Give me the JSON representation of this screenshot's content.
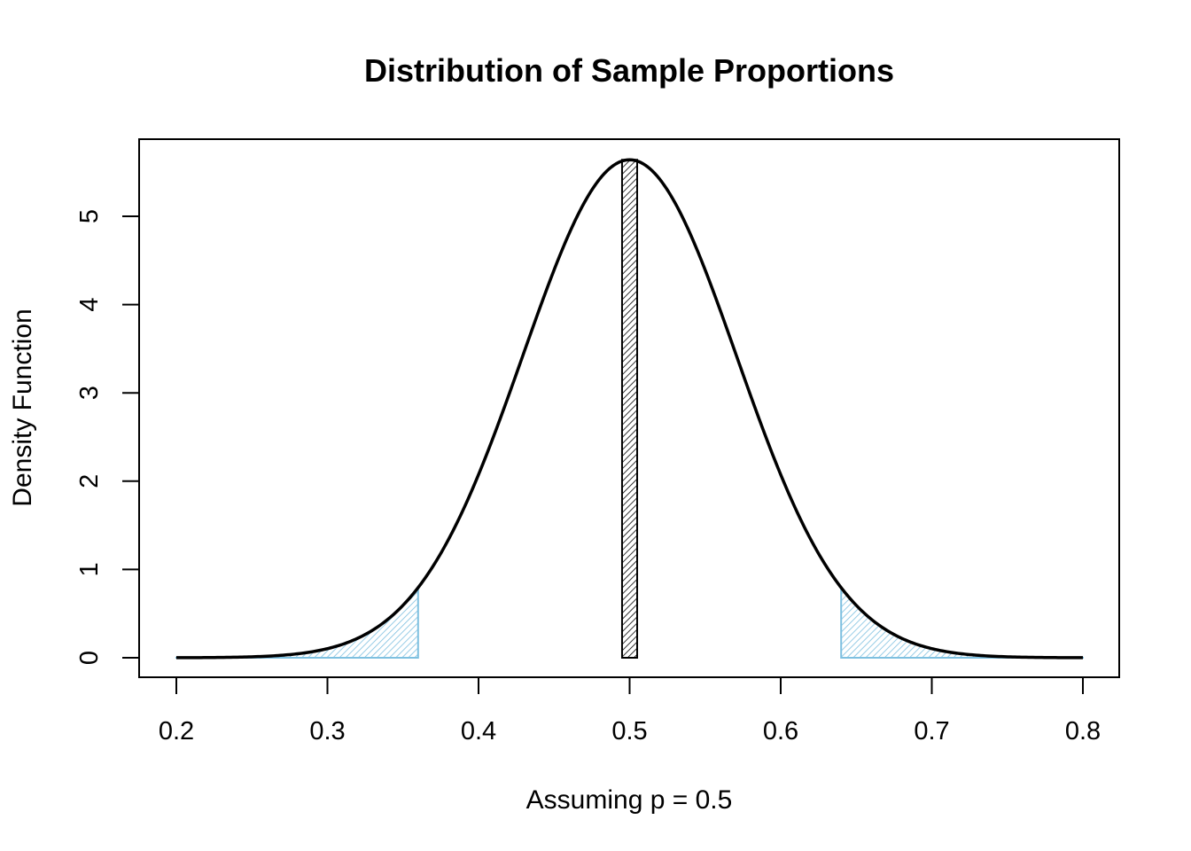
{
  "chart_data": {
    "type": "area",
    "title": "Distribution of Sample Proportions",
    "xlabel": "Assuming p = 0.5",
    "ylabel": "Density Function",
    "xlim": [
      0.2,
      0.8
    ],
    "ylim": [
      0,
      5.64
    ],
    "x_ticks": [
      "0.2",
      "0.3",
      "0.4",
      "0.5",
      "0.6",
      "0.7",
      "0.8"
    ],
    "y_ticks": [
      "0",
      "1",
      "2",
      "3",
      "4",
      "5"
    ],
    "grid": false,
    "legend": "none",
    "series": [
      {
        "kind": "normal-density-curve",
        "mean": 0.5,
        "sd": 0.0707,
        "x_range": [
          0.2,
          0.8
        ],
        "peak_density": 5.64,
        "color": "#000000"
      }
    ],
    "shaded_regions": [
      {
        "kind": "left-tail",
        "x_from": 0.2,
        "x_to": 0.36,
        "color": "#7ec0e0",
        "fill": "hatched"
      },
      {
        "kind": "right-tail",
        "x_from": 0.64,
        "x_to": 0.8,
        "color": "#7ec0e0",
        "fill": "hatched"
      },
      {
        "kind": "center-bar",
        "x_from": 0.495,
        "x_to": 0.505,
        "y_to": 5.64,
        "color": "#000000",
        "fill": "hatched"
      }
    ]
  }
}
